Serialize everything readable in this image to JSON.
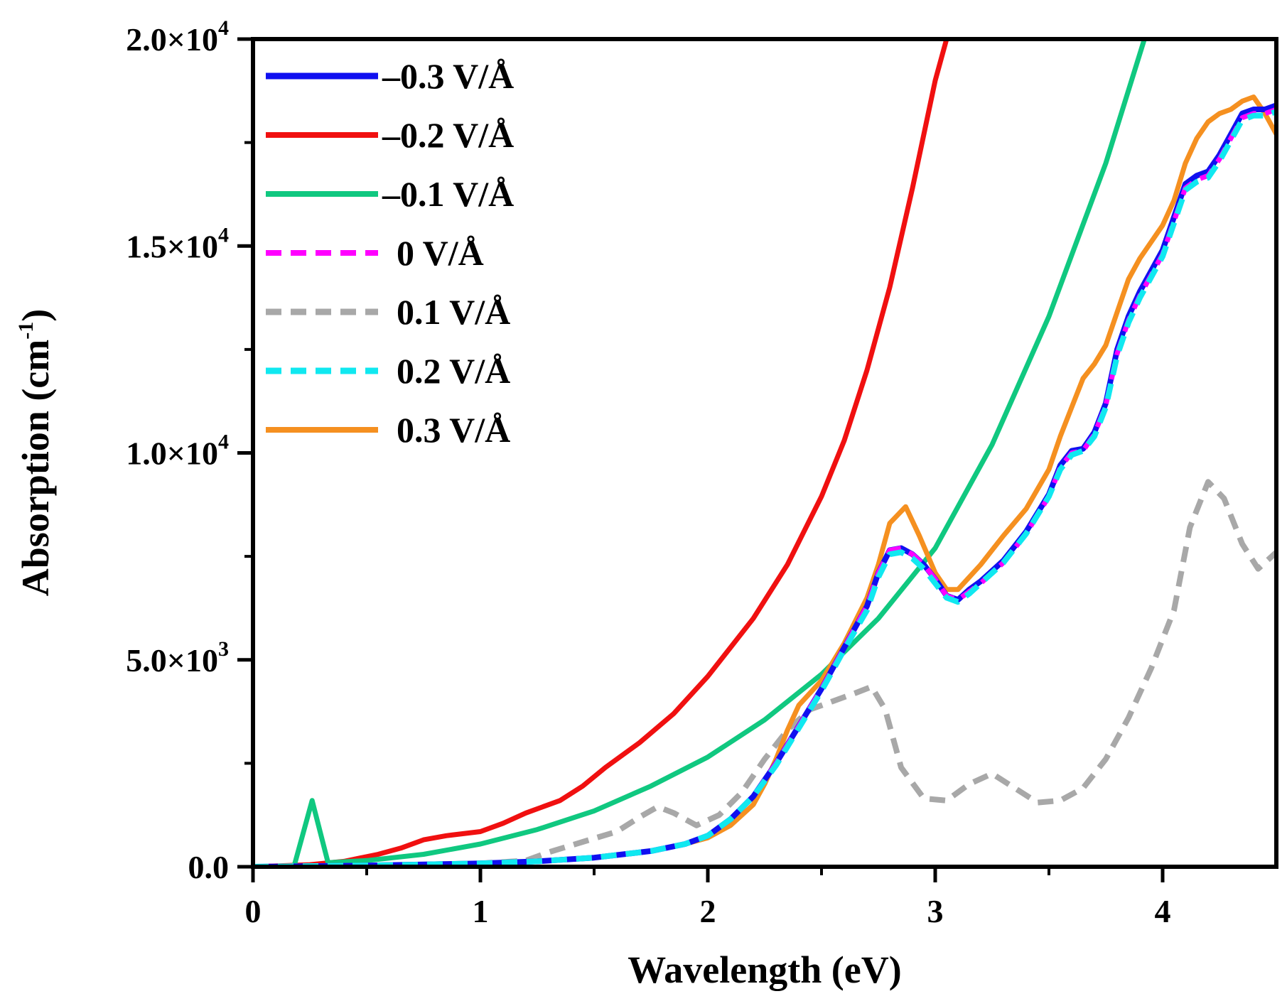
{
  "chart_data": {
    "type": "line",
    "title": "",
    "xlabel": "Wavelength (eV)",
    "ylabel_main": "Absorption (cm",
    "ylabel_sup": "-1",
    "ylabel_close": ")",
    "xlim": [
      0,
      4.5
    ],
    "ylim": [
      0,
      20000
    ],
    "xticks": [
      0,
      1,
      2,
      3,
      4
    ],
    "xtick_labels": [
      "0",
      "1",
      "2",
      "3",
      "4"
    ],
    "yticks": [
      {
        "value": 0,
        "mantissa": "0.0",
        "exp": ""
      },
      {
        "value": 5000,
        "mantissa": "5.0×10",
        "exp": "3"
      },
      {
        "value": 10000,
        "mantissa": "1.0×10",
        "exp": "4"
      },
      {
        "value": 15000,
        "mantissa": "1.5×10",
        "exp": "4"
      },
      {
        "value": 20000,
        "mantissa": "2.0×10",
        "exp": "4"
      }
    ],
    "legend_position": "top-left",
    "series": [
      {
        "name": "–0.3 V/Å",
        "color": "#1010f0",
        "dash": "solid",
        "width": 8,
        "x": [
          0,
          0.5,
          1,
          1.25,
          1.5,
          1.75,
          1.9,
          2,
          2.1,
          2.2,
          2.3,
          2.4,
          2.5,
          2.6,
          2.7,
          2.75,
          2.8,
          2.85,
          2.9,
          2.95,
          3,
          3.05,
          3.1,
          3.15,
          3.2,
          3.3,
          3.4,
          3.5,
          3.55,
          3.6,
          3.65,
          3.7,
          3.75,
          3.8,
          3.85,
          3.9,
          4,
          4.1,
          4.15,
          4.2,
          4.25,
          4.3,
          4.35,
          4.4,
          4.45,
          4.5
        ],
        "y": [
          0,
          30,
          80,
          130,
          220,
          380,
          550,
          750,
          1150,
          1700,
          2500,
          3400,
          4300,
          5300,
          6300,
          7100,
          7650,
          7700,
          7550,
          7300,
          6950,
          6550,
          6450,
          6700,
          6900,
          7400,
          8100,
          9000,
          9700,
          10050,
          10100,
          10500,
          11200,
          12500,
          13300,
          13900,
          14900,
          16500,
          16700,
          16800,
          17200,
          17700,
          18200,
          18300,
          18300,
          18400
        ]
      },
      {
        "name": "–0.2 V/Å",
        "color": "#f01010",
        "dash": "solid",
        "width": 7,
        "x": [
          0,
          0.25,
          0.4,
          0.55,
          0.65,
          0.75,
          0.85,
          1,
          1.1,
          1.2,
          1.35,
          1.45,
          1.55,
          1.7,
          1.85,
          2,
          2.1,
          2.2,
          2.35,
          2.5,
          2.6,
          2.7,
          2.8,
          2.9,
          3,
          3.05
        ],
        "y": [
          0,
          50,
          130,
          300,
          450,
          650,
          750,
          850,
          1050,
          1300,
          1600,
          1950,
          2400,
          3000,
          3700,
          4600,
          5300,
          6000,
          7300,
          8950,
          10300,
          12000,
          14000,
          16400,
          19000,
          20000
        ]
      },
      {
        "name": "–0.1 V/Å",
        "color": "#10c880",
        "dash": "solid",
        "width": 7,
        "x": [
          0,
          0.18,
          0.26,
          0.33,
          0.5,
          0.75,
          1,
          1.25,
          1.5,
          1.75,
          2,
          2.25,
          2.5,
          2.75,
          3,
          3.25,
          3.5,
          3.75,
          3.92
        ],
        "y": [
          0,
          0,
          1600,
          100,
          150,
          300,
          550,
          900,
          1350,
          1950,
          2650,
          3550,
          4650,
          6000,
          7700,
          10200,
          13300,
          17000,
          20000
        ]
      },
      {
        "name": "0 V/Å",
        "color": "#ff00ff",
        "dash": "dashed",
        "width": 7,
        "x": [
          0,
          0.5,
          1,
          1.25,
          1.5,
          1.75,
          1.9,
          2,
          2.1,
          2.2,
          2.3,
          2.4,
          2.5,
          2.6,
          2.7,
          2.75,
          2.8,
          2.85,
          2.9,
          2.95,
          3,
          3.05,
          3.1,
          3.15,
          3.2,
          3.3,
          3.4,
          3.5,
          3.55,
          3.6,
          3.65,
          3.7,
          3.75,
          3.8,
          3.85,
          3.9,
          4,
          4.1,
          4.15,
          4.2,
          4.25,
          4.3,
          4.35,
          4.4,
          4.45,
          4.5
        ],
        "y": [
          0,
          30,
          80,
          130,
          220,
          380,
          550,
          750,
          1150,
          1700,
          2500,
          3400,
          4300,
          5300,
          6300,
          7100,
          7650,
          7700,
          7550,
          7300,
          6950,
          6550,
          6450,
          6650,
          6850,
          7350,
          8050,
          8950,
          9650,
          10000,
          10050,
          10450,
          11150,
          12400,
          13200,
          13800,
          14800,
          16400,
          16600,
          16700,
          17100,
          17600,
          18100,
          18200,
          18200,
          18300
        ]
      },
      {
        "name": "0.1 V/Å",
        "color": "#a8a8a8",
        "dash": "dashed",
        "width": 8,
        "x": [
          0,
          0.5,
          1,
          1.2,
          1.3,
          1.45,
          1.6,
          1.7,
          1.78,
          1.85,
          1.95,
          2.05,
          2.15,
          2.25,
          2.35,
          2.45,
          2.55,
          2.65,
          2.72,
          2.78,
          2.85,
          2.95,
          3.05,
          3.15,
          3.25,
          3.35,
          3.45,
          3.55,
          3.65,
          3.75,
          3.85,
          3.95,
          4.05,
          4.12,
          4.2,
          4.27,
          4.35,
          4.42,
          4.5
        ],
        "y": [
          0,
          30,
          80,
          150,
          350,
          600,
          850,
          1200,
          1450,
          1300,
          1000,
          1250,
          1800,
          2600,
          3300,
          3800,
          4000,
          4200,
          4350,
          3800,
          2400,
          1650,
          1600,
          2000,
          2250,
          1900,
          1550,
          1600,
          1900,
          2600,
          3600,
          4800,
          6200,
          8200,
          9300,
          8900,
          7800,
          7200,
          7600
        ]
      },
      {
        "name": "0.2 V/Å",
        "color": "#10e8f0",
        "dash": "dashed",
        "width": 8,
        "x": [
          0,
          0.5,
          1,
          1.25,
          1.5,
          1.75,
          1.9,
          2,
          2.1,
          2.2,
          2.3,
          2.4,
          2.5,
          2.6,
          2.7,
          2.75,
          2.8,
          2.85,
          2.9,
          2.95,
          3,
          3.05,
          3.1,
          3.15,
          3.2,
          3.3,
          3.4,
          3.5,
          3.55,
          3.6,
          3.65,
          3.7,
          3.75,
          3.8,
          3.85,
          3.9,
          4,
          4.1,
          4.15,
          4.2,
          4.25,
          4.3,
          4.35,
          4.4,
          4.45,
          4.5
        ],
        "y": [
          0,
          30,
          80,
          130,
          220,
          380,
          550,
          750,
          1150,
          1700,
          2450,
          3350,
          4250,
          5250,
          6200,
          7000,
          7550,
          7600,
          7450,
          7200,
          6850,
          6500,
          6400,
          6600,
          6850,
          7350,
          8050,
          8950,
          9600,
          9950,
          10050,
          10400,
          11100,
          12350,
          13150,
          13750,
          14750,
          16350,
          16550,
          16650,
          17050,
          17550,
          18050,
          18150,
          18150,
          18250
        ]
      },
      {
        "name": "0.3 V/Å",
        "color": "#f59020",
        "dash": "solid",
        "width": 7,
        "x": [
          0,
          0.5,
          1,
          1.25,
          1.5,
          1.75,
          1.9,
          2,
          2.1,
          2.2,
          2.25,
          2.3,
          2.35,
          2.4,
          2.5,
          2.6,
          2.7,
          2.75,
          2.8,
          2.87,
          2.93,
          3,
          3.05,
          3.1,
          3.15,
          3.2,
          3.3,
          3.4,
          3.5,
          3.55,
          3.6,
          3.65,
          3.7,
          3.75,
          3.8,
          3.85,
          3.9,
          4,
          4.05,
          4.1,
          4.15,
          4.2,
          4.25,
          4.3,
          4.35,
          4.4,
          4.45,
          4.5
        ],
        "y": [
          0,
          30,
          80,
          130,
          220,
          380,
          550,
          700,
          1000,
          1500,
          2000,
          2600,
          3300,
          3900,
          4500,
          5400,
          6500,
          7300,
          8300,
          8700,
          8000,
          7100,
          6700,
          6700,
          7000,
          7300,
          8000,
          8650,
          9600,
          10400,
          11100,
          11800,
          12150,
          12600,
          13400,
          14200,
          14700,
          15500,
          16100,
          17000,
          17600,
          18000,
          18200,
          18300,
          18500,
          18600,
          18200,
          17700
        ]
      }
    ]
  }
}
